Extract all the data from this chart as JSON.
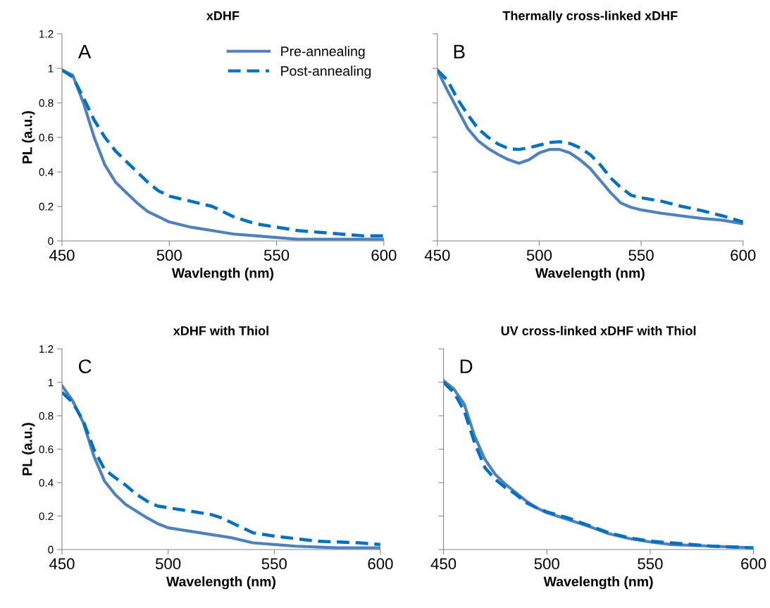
{
  "chart_data": [
    {
      "type": "line",
      "title": "xDHF",
      "xlabel": "Wavlength (nm)",
      "ylabel": "PL (a.u.)",
      "annotations": [
        "A"
      ],
      "xlim": [
        450,
        600
      ],
      "xticks": [
        450,
        500,
        550,
        600
      ],
      "ylim": [
        0,
        1.2
      ],
      "yticks": [
        0,
        0.2,
        0.4,
        0.6,
        0.8,
        1,
        1.2
      ],
      "grid": false,
      "legend": "top right",
      "series": [
        {
          "name": "Pre-annealing",
          "color": "#4f81bd",
          "line_style": "solid",
          "x": [
            450,
            455,
            460,
            465,
            470,
            475,
            480,
            485,
            490,
            495,
            500,
            510,
            520,
            530,
            540,
            550,
            560,
            580,
            600
          ],
          "values": [
            0.99,
            0.96,
            0.8,
            0.6,
            0.44,
            0.34,
            0.28,
            0.22,
            0.17,
            0.14,
            0.11,
            0.08,
            0.06,
            0.04,
            0.03,
            0.02,
            0.01,
            0.01,
            0.01
          ]
        },
        {
          "name": "Post-annealing",
          "color": "#0070c0",
          "line_style": "dashed",
          "x": [
            450,
            455,
            460,
            465,
            470,
            475,
            480,
            485,
            490,
            495,
            500,
            510,
            520,
            525,
            530,
            540,
            550,
            560,
            570,
            580,
            590,
            600
          ],
          "values": [
            0.99,
            0.95,
            0.83,
            0.7,
            0.6,
            0.52,
            0.46,
            0.4,
            0.34,
            0.29,
            0.26,
            0.23,
            0.2,
            0.17,
            0.14,
            0.1,
            0.08,
            0.06,
            0.05,
            0.04,
            0.03,
            0.03
          ]
        }
      ]
    },
    {
      "type": "line",
      "title": "Thermally cross-linked xDHF",
      "xlabel": "Wavelength (nm)",
      "annotations": [
        "B"
      ],
      "xlim": [
        450,
        600
      ],
      "xticks": [
        450,
        500,
        550,
        600
      ],
      "ylim": [
        0,
        1.2
      ],
      "yticks": [
        0,
        0.2,
        0.4,
        0.6,
        0.8,
        1,
        1.2
      ],
      "tick_labels": "x",
      "grid": false,
      "series": [
        {
          "color": "#4f81bd",
          "line_style": "solid",
          "x": [
            450,
            455,
            460,
            465,
            470,
            475,
            480,
            485,
            490,
            495,
            500,
            505,
            510,
            515,
            520,
            525,
            530,
            535,
            540,
            545,
            550,
            560,
            570,
            580,
            590,
            600
          ],
          "values": [
            0.99,
            0.87,
            0.76,
            0.65,
            0.58,
            0.535,
            0.5,
            0.47,
            0.45,
            0.47,
            0.51,
            0.53,
            0.53,
            0.51,
            0.47,
            0.42,
            0.35,
            0.28,
            0.22,
            0.195,
            0.18,
            0.16,
            0.145,
            0.13,
            0.12,
            0.1
          ]
        },
        {
          "color": "#0070c0",
          "line_style": "dashed",
          "x": [
            450,
            455,
            460,
            465,
            470,
            475,
            480,
            485,
            490,
            495,
            500,
            505,
            510,
            515,
            520,
            525,
            530,
            535,
            540,
            545,
            550,
            560,
            570,
            580,
            590,
            600
          ],
          "values": [
            0.99,
            0.93,
            0.82,
            0.73,
            0.65,
            0.6,
            0.56,
            0.535,
            0.53,
            0.54,
            0.555,
            0.57,
            0.575,
            0.565,
            0.54,
            0.5,
            0.44,
            0.365,
            0.31,
            0.265,
            0.25,
            0.23,
            0.2,
            0.175,
            0.145,
            0.11
          ]
        }
      ]
    },
    {
      "type": "line",
      "title": "xDHF with Thiol",
      "xlabel": "Wavelength (nm)",
      "ylabel": "PL (a.u.)",
      "annotations": [
        "C"
      ],
      "xlim": [
        450,
        600
      ],
      "xticks": [
        450,
        500,
        550,
        600
      ],
      "ylim": [
        0,
        1.2
      ],
      "yticks": [
        0,
        0.2,
        0.4,
        0.6,
        0.8,
        1,
        1.2
      ],
      "grid": false,
      "series": [
        {
          "color": "#4f81bd",
          "line_style": "solid",
          "x": [
            450,
            455,
            460,
            465,
            470,
            475,
            480,
            485,
            490,
            495,
            500,
            510,
            520,
            530,
            540,
            550,
            560,
            580,
            600
          ],
          "values": [
            0.98,
            0.89,
            0.76,
            0.56,
            0.41,
            0.33,
            0.27,
            0.23,
            0.19,
            0.155,
            0.13,
            0.11,
            0.09,
            0.07,
            0.04,
            0.03,
            0.02,
            0.01,
            0.01
          ]
        },
        {
          "color": "#0070c0",
          "line_style": "dashed",
          "x": [
            450,
            455,
            460,
            465,
            470,
            475,
            480,
            485,
            490,
            495,
            500,
            510,
            520,
            525,
            530,
            540,
            550,
            560,
            570,
            580,
            590,
            600
          ],
          "values": [
            0.94,
            0.88,
            0.77,
            0.6,
            0.48,
            0.43,
            0.385,
            0.33,
            0.29,
            0.26,
            0.25,
            0.23,
            0.21,
            0.19,
            0.16,
            0.1,
            0.08,
            0.065,
            0.05,
            0.045,
            0.04,
            0.03
          ]
        }
      ]
    },
    {
      "type": "line",
      "title": "UV cross-linked xDHF with Thiol",
      "xlabel": "Wavelength (nm)",
      "annotations": [
        "D"
      ],
      "xlim": [
        450,
        600
      ],
      "xticks": [
        450,
        500,
        550,
        600
      ],
      "ylim": [
        0,
        1.2
      ],
      "yticks": [
        0,
        0.2,
        0.4,
        0.6,
        0.8,
        1,
        1.2
      ],
      "tick_labels": "x",
      "grid": false,
      "series": [
        {
          "color": "#4f81bd",
          "line_style": "solid",
          "x": [
            450,
            455,
            460,
            465,
            470,
            475,
            480,
            485,
            490,
            495,
            500,
            510,
            520,
            530,
            540,
            550,
            560,
            580,
            600
          ],
          "values": [
            1.01,
            0.96,
            0.87,
            0.68,
            0.54,
            0.45,
            0.39,
            0.34,
            0.29,
            0.25,
            0.22,
            0.18,
            0.14,
            0.095,
            0.065,
            0.045,
            0.03,
            0.02,
            0.01
          ]
        },
        {
          "color": "#0070c0",
          "line_style": "dashed",
          "x": [
            450,
            455,
            460,
            465,
            470,
            475,
            480,
            485,
            490,
            495,
            500,
            510,
            520,
            530,
            540,
            550,
            560,
            580,
            600
          ],
          "values": [
            1.0,
            0.94,
            0.83,
            0.64,
            0.49,
            0.42,
            0.37,
            0.33,
            0.28,
            0.25,
            0.225,
            0.19,
            0.145,
            0.1,
            0.07,
            0.05,
            0.04,
            0.02,
            0.01
          ]
        }
      ]
    }
  ]
}
